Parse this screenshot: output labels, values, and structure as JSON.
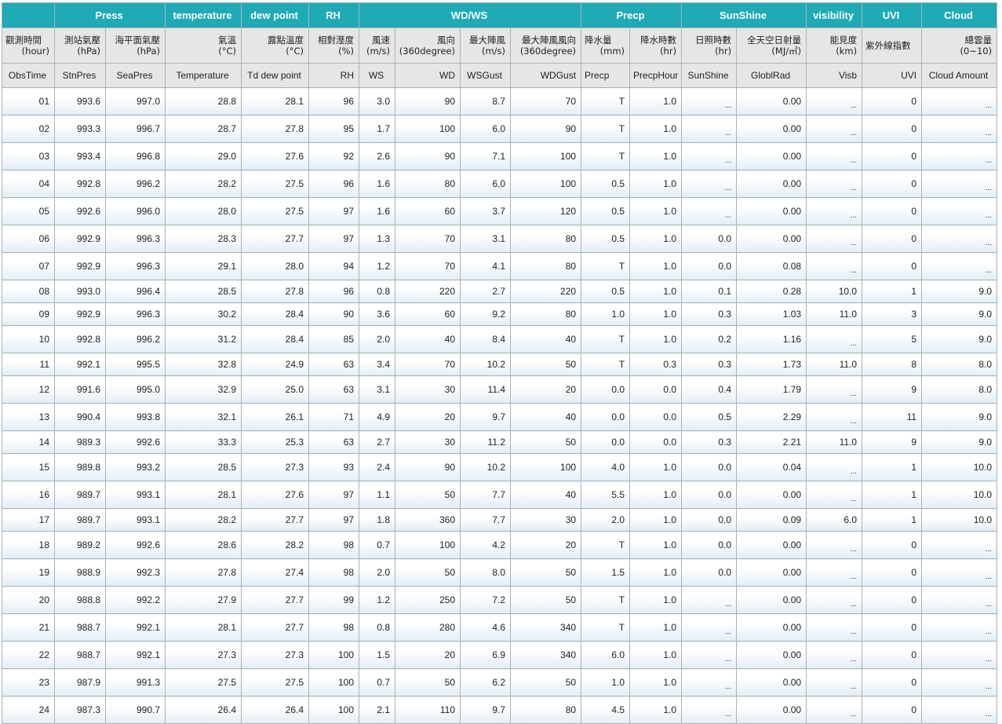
{
  "groups": [
    {
      "label": "",
      "span": 1
    },
    {
      "label": "Press",
      "span": 2
    },
    {
      "label": "temperature",
      "span": 1
    },
    {
      "label": "dew point",
      "span": 1
    },
    {
      "label": "RH",
      "span": 1
    },
    {
      "label": "WD/WS",
      "span": 4
    },
    {
      "label": "Precp",
      "span": 2
    },
    {
      "label": "SunShine",
      "span": 2
    },
    {
      "label": "visibility",
      "span": 1
    },
    {
      "label": "UVI",
      "span": 1
    },
    {
      "label": "Cloud",
      "span": 1
    }
  ],
  "columns_cn": [
    {
      "l1": "觀測時間",
      "l2": "(hour)"
    },
    {
      "l1": "測站氣壓",
      "l2": "(hPa)"
    },
    {
      "l1": "海平面氣壓",
      "l2": "(hPa)"
    },
    {
      "l1": "氣溫",
      "l2": "(°C)"
    },
    {
      "l1": "露點溫度",
      "l2": "(°C)"
    },
    {
      "l1": "相對溼度",
      "l2": "(%)"
    },
    {
      "l1": "風速",
      "l2": "(m/s)"
    },
    {
      "l1": "風向",
      "l2": "(360degree)"
    },
    {
      "l1": "最大陣風",
      "l2": "(m/s)"
    },
    {
      "l1": "最大陣風風向",
      "l2": "(360degree)"
    },
    {
      "l1": "降水量",
      "l2": "(mm)"
    },
    {
      "l1": "降水時數",
      "l2": "(hr)"
    },
    {
      "l1": "日照時數",
      "l2": "(hr)"
    },
    {
      "l1": "全天空日射量",
      "l2": "(MJ/㎡)"
    },
    {
      "l1": "能見度",
      "l2": "(km)"
    },
    {
      "l1": "紫外線指數",
      "l2": ""
    },
    {
      "l1": "總雲量",
      "l2": "(0~10)"
    }
  ],
  "columns_en": [
    "ObsTime",
    "StnPres",
    "SeaPres",
    "Temperature",
    "Td dew point",
    "RH",
    "WS",
    "WD",
    "WSGust",
    "WDGust",
    "Precp",
    "PrecpHour",
    "SunShine",
    "GloblRad",
    "Visb",
    "UVI",
    "Cloud Amount"
  ],
  "rows": [
    [
      "01",
      "993.6",
      "997.0",
      "28.8",
      "28.1",
      "96",
      "3.0",
      "90",
      "8.7",
      "70",
      "T",
      "1.0",
      "...",
      "0.00",
      "...",
      "0",
      "..."
    ],
    [
      "02",
      "993.3",
      "996.7",
      "28.7",
      "27.8",
      "95",
      "1.7",
      "100",
      "6.0",
      "90",
      "T",
      "1.0",
      "...",
      "0.00",
      "...",
      "0",
      "..."
    ],
    [
      "03",
      "993.4",
      "996.8",
      "29.0",
      "27.6",
      "92",
      "2.6",
      "90",
      "7.1",
      "100",
      "T",
      "1.0",
      "...",
      "0.00",
      "...",
      "0",
      "..."
    ],
    [
      "04",
      "992.8",
      "996.2",
      "28.2",
      "27.5",
      "96",
      "1.6",
      "80",
      "6.0",
      "100",
      "0.5",
      "1.0",
      "...",
      "0.00",
      "...",
      "0",
      "..."
    ],
    [
      "05",
      "992.6",
      "996.0",
      "28.0",
      "27.5",
      "97",
      "1.6",
      "60",
      "3.7",
      "120",
      "0.5",
      "1.0",
      "...",
      "0.00",
      "...",
      "0",
      "..."
    ],
    [
      "06",
      "992.9",
      "996.3",
      "28.3",
      "27.7",
      "97",
      "1.3",
      "70",
      "3.1",
      "80",
      "0.5",
      "1.0",
      "0.0",
      "0.00",
      "...",
      "0",
      "..."
    ],
    [
      "07",
      "992.9",
      "996.3",
      "29.1",
      "28.0",
      "94",
      "1.2",
      "70",
      "4.1",
      "80",
      "T",
      "1.0",
      "0.0",
      "0.08",
      "...",
      "0",
      "..."
    ],
    [
      "08",
      "993.0",
      "996.4",
      "28.5",
      "27.8",
      "96",
      "0.8",
      "220",
      "2.7",
      "220",
      "0.5",
      "1.0",
      "0.1",
      "0.28",
      "10.0",
      "1",
      "9.0"
    ],
    [
      "09",
      "992.9",
      "996.3",
      "30.2",
      "28.4",
      "90",
      "3.6",
      "60",
      "9.2",
      "80",
      "1.0",
      "1.0",
      "0.3",
      "1.03",
      "11.0",
      "3",
      "9.0"
    ],
    [
      "10",
      "992.8",
      "996.2",
      "31.2",
      "28.4",
      "85",
      "2.0",
      "40",
      "8.4",
      "40",
      "T",
      "1.0",
      "0.2",
      "1.16",
      "...",
      "5",
      "9.0"
    ],
    [
      "11",
      "992.1",
      "995.5",
      "32.8",
      "24.9",
      "63",
      "3.4",
      "70",
      "10.2",
      "50",
      "T",
      "0.3",
      "0.3",
      "1.73",
      "11.0",
      "8",
      "8.0"
    ],
    [
      "12",
      "991.6",
      "995.0",
      "32.9",
      "25.0",
      "63",
      "3.1",
      "30",
      "11.4",
      "20",
      "0.0",
      "0.0",
      "0.4",
      "1.79",
      "...",
      "9",
      "8.0"
    ],
    [
      "13",
      "990.4",
      "993.8",
      "32.1",
      "26.1",
      "71",
      "4.9",
      "20",
      "9.7",
      "40",
      "0.0",
      "0.0",
      "0.5",
      "2.29",
      "...",
      "11",
      "9.0"
    ],
    [
      "14",
      "989.3",
      "992.6",
      "33.3",
      "25.3",
      "63",
      "2.7",
      "30",
      "11.2",
      "50",
      "0.0",
      "0.0",
      "0.3",
      "2.21",
      "11.0",
      "9",
      "9.0"
    ],
    [
      "15",
      "989.8",
      "993.2",
      "28.5",
      "27.3",
      "93",
      "2.4",
      "90",
      "10.2",
      "100",
      "4.0",
      "1.0",
      "0.0",
      "0.04",
      "...",
      "1",
      "10.0"
    ],
    [
      "16",
      "989.7",
      "993.1",
      "28.1",
      "27.6",
      "97",
      "1.1",
      "50",
      "7.7",
      "40",
      "5.5",
      "1.0",
      "0.0",
      "0.00",
      "...",
      "1",
      "10.0"
    ],
    [
      "17",
      "989.7",
      "993.1",
      "28.2",
      "27.7",
      "97",
      "1.8",
      "360",
      "7.7",
      "30",
      "2.0",
      "1.0",
      "0.0",
      "0.09",
      "6.0",
      "1",
      "10.0"
    ],
    [
      "18",
      "989.2",
      "992.6",
      "28.6",
      "28.2",
      "98",
      "0.7",
      "100",
      "4.2",
      "20",
      "T",
      "1.0",
      "0.0",
      "0.00",
      "...",
      "0",
      "..."
    ],
    [
      "19",
      "988.9",
      "992.3",
      "27.8",
      "27.4",
      "98",
      "2.0",
      "50",
      "8.0",
      "50",
      "1.5",
      "1.0",
      "0.0",
      "0.00",
      "...",
      "0",
      "..."
    ],
    [
      "20",
      "988.8",
      "992.2",
      "27.9",
      "27.7",
      "99",
      "1.2",
      "250",
      "7.2",
      "50",
      "T",
      "1.0",
      "...",
      "0.00",
      "...",
      "0",
      "..."
    ],
    [
      "21",
      "988.7",
      "992.1",
      "28.1",
      "27.7",
      "98",
      "0.8",
      "280",
      "4.6",
      "340",
      "T",
      "1.0",
      "...",
      "0.00",
      "...",
      "0",
      "..."
    ],
    [
      "22",
      "988.7",
      "992.1",
      "27.3",
      "27.3",
      "100",
      "1.5",
      "20",
      "6.9",
      "340",
      "6.0",
      "1.0",
      "...",
      "0.00",
      "...",
      "0",
      "..."
    ],
    [
      "23",
      "987.9",
      "991.3",
      "27.5",
      "27.5",
      "100",
      "0.7",
      "50",
      "6.2",
      "50",
      "1.0",
      "1.0",
      "...",
      "0.00",
      "...",
      "0",
      "..."
    ],
    [
      "24",
      "987.3",
      "990.7",
      "26.4",
      "26.4",
      "100",
      "2.1",
      "110",
      "9.7",
      "80",
      "4.5",
      "1.0",
      "...",
      "0.00",
      "...",
      "0",
      "..."
    ]
  ],
  "colors": {
    "header_accent": "#1faab5",
    "header_text": "#ffffff",
    "subheader_bg": "#e6e6e6",
    "cell_gradient_bottom": "#e2edf6",
    "border": "#a9b3b8"
  }
}
